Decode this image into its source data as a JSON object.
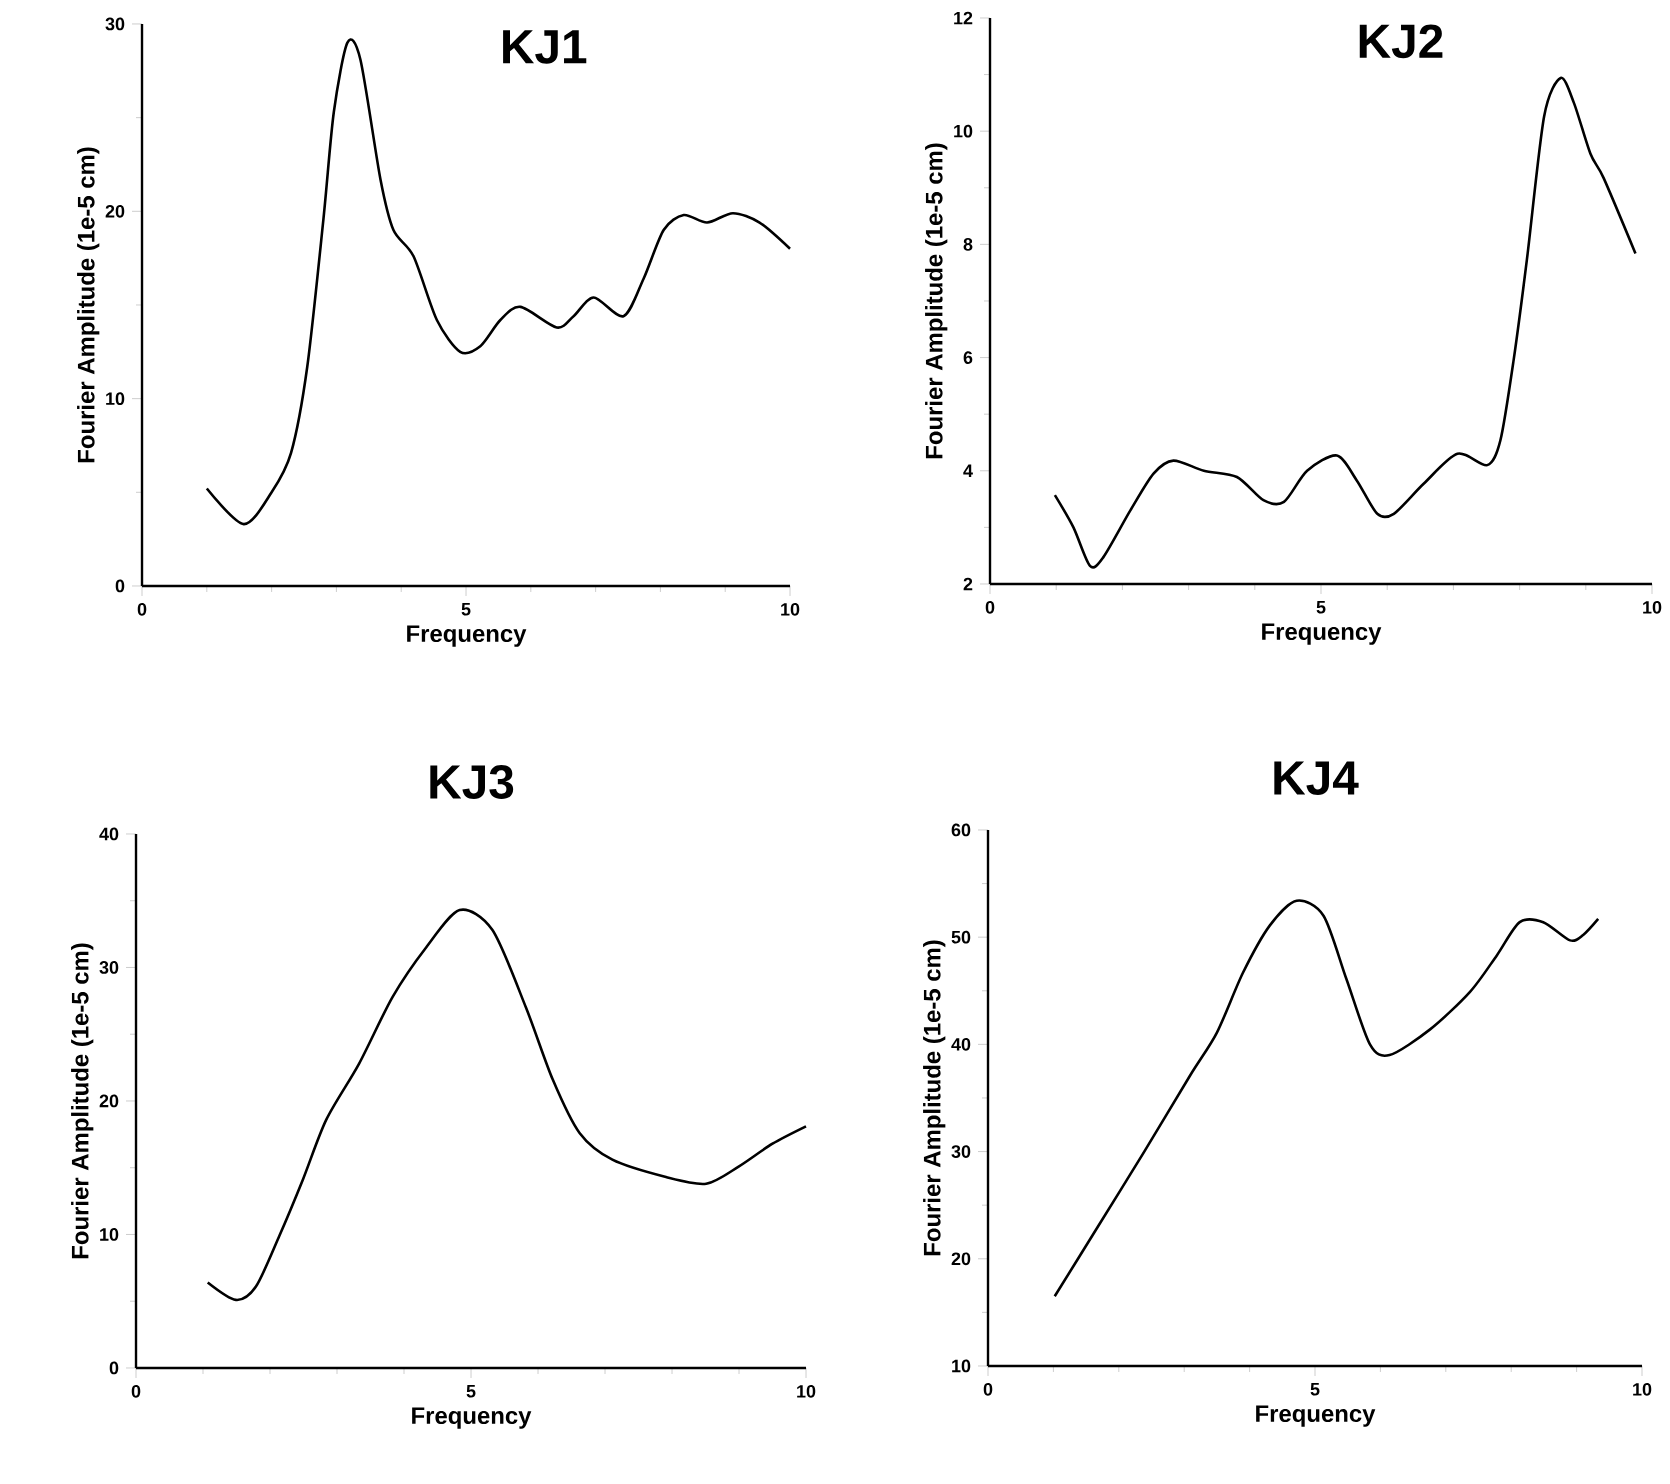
{
  "chart_data": [
    {
      "type": "line",
      "title": "KJ1",
      "xlabel": "Frequency",
      "ylabel": "Fourier Amplitude (1e-5 cm)",
      "xlim": [
        0,
        10
      ],
      "ylim": [
        0,
        30
      ],
      "xticks": [
        0,
        5,
        10
      ],
      "yticks": [
        0,
        10,
        20,
        30
      ],
      "series": [
        {
          "color": "#000000",
          "x": [
            1.0,
            1.57,
            2.0,
            2.3,
            2.55,
            2.8,
            2.96,
            3.17,
            3.37,
            3.68,
            3.88,
            4.19,
            4.55,
            4.91,
            5.22,
            5.53,
            5.84,
            6.4,
            6.66,
            6.97,
            7.43,
            7.74,
            8.05,
            8.36,
            8.72,
            9.12,
            9.53,
            10.0
          ],
          "values": [
            5.2,
            3.3,
            5.0,
            7.1,
            11.7,
            19.6,
            25.3,
            29.0,
            28.1,
            21.7,
            19.0,
            17.6,
            14.2,
            12.5,
            12.8,
            14.2,
            14.9,
            13.8,
            14.4,
            15.4,
            14.4,
            16.4,
            19.0,
            19.8,
            19.4,
            19.9,
            19.4,
            18.0
          ]
        }
      ]
    },
    {
      "type": "line",
      "title": "KJ2",
      "xlabel": "Frequency",
      "ylabel": "Fourier Amplitude (1e-5 cm)",
      "xlim": [
        0,
        10
      ],
      "ylim": [
        2,
        12
      ],
      "xticks": [
        0,
        5,
        10
      ],
      "yticks": [
        2,
        4,
        6,
        8,
        10,
        12
      ],
      "series": [
        {
          "color": "#000000",
          "x": [
            0.98,
            1.26,
            1.51,
            1.71,
            2.12,
            2.47,
            2.77,
            3.23,
            3.73,
            4.13,
            4.44,
            4.79,
            5.24,
            5.54,
            5.85,
            6.1,
            6.55,
            7.06,
            7.51,
            7.71,
            7.91,
            8.11,
            8.37,
            8.62,
            8.82,
            9.07,
            9.27,
            9.75
          ],
          "values": [
            3.57,
            3.0,
            2.32,
            2.47,
            3.3,
            3.95,
            4.18,
            4.0,
            3.89,
            3.48,
            3.45,
            4.0,
            4.27,
            3.83,
            3.24,
            3.24,
            3.77,
            4.3,
            4.1,
            4.54,
            5.96,
            7.73,
            10.26,
            10.94,
            10.5,
            9.6,
            9.17,
            7.84
          ]
        }
      ]
    },
    {
      "type": "line",
      "title": "KJ3",
      "xlabel": "Frequency",
      "ylabel": "Fourier Amplitude (1e-5 cm)",
      "xlim": [
        0,
        10
      ],
      "ylim": [
        0,
        40
      ],
      "xticks": [
        0,
        5,
        10
      ],
      "yticks": [
        0,
        10,
        20,
        30,
        40
      ],
      "series": [
        {
          "color": "#000000",
          "x": [
            1.07,
            1.49,
            1.79,
            2.14,
            2.49,
            2.84,
            3.33,
            3.83,
            4.33,
            4.83,
            5.32,
            5.82,
            6.22,
            6.62,
            7.11,
            7.91,
            8.51,
            9.0,
            9.5,
            10.0
          ],
          "values": [
            6.4,
            5.1,
            6.1,
            9.9,
            14.1,
            18.6,
            22.8,
            27.8,
            31.5,
            34.3,
            32.8,
            27.0,
            21.6,
            17.6,
            15.6,
            14.3,
            13.8,
            15.1,
            16.8,
            18.1
          ]
        }
      ]
    },
    {
      "type": "line",
      "title": "KJ4",
      "xlabel": "Frequency",
      "ylabel": "Fourier Amplitude (1e-5 cm)",
      "xlim": [
        0,
        10
      ],
      "ylim": [
        10,
        60
      ],
      "xticks": [
        0,
        5,
        10
      ],
      "yticks": [
        10,
        20,
        30,
        40,
        50,
        60
      ],
      "series": [
        {
          "color": "#000000",
          "x": [
            1.02,
            1.66,
            2.38,
            3.09,
            3.5,
            3.9,
            4.31,
            4.72,
            5.13,
            5.48,
            5.84,
            6.14,
            6.76,
            7.37,
            7.78,
            8.13,
            8.49,
            8.9,
            9.1,
            9.33
          ],
          "values": [
            16.5,
            22.8,
            29.9,
            37.1,
            41.1,
            46.7,
            51.1,
            53.4,
            52.0,
            46.1,
            40.0,
            39.0,
            41.4,
            44.9,
            48.3,
            51.4,
            51.4,
            49.7,
            50.2,
            51.7
          ]
        }
      ]
    }
  ]
}
